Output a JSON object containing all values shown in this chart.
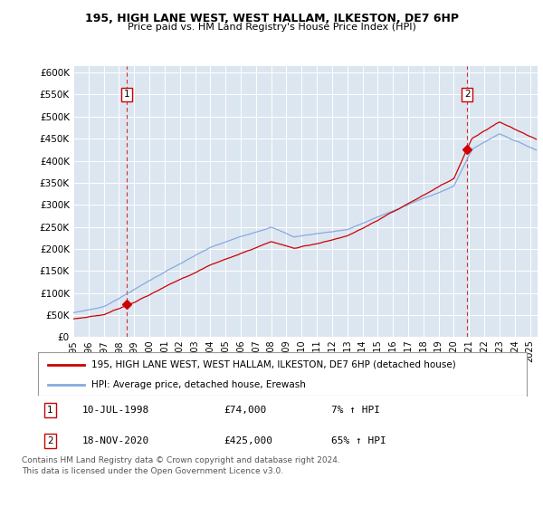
{
  "title1": "195, HIGH LANE WEST, WEST HALLAM, ILKESTON, DE7 6HP",
  "title2": "Price paid vs. HM Land Registry's House Price Index (HPI)",
  "ylabel_ticks": [
    "£0",
    "£50K",
    "£100K",
    "£150K",
    "£200K",
    "£250K",
    "£300K",
    "£350K",
    "£400K",
    "£450K",
    "£500K",
    "£550K",
    "£600K"
  ],
  "ytick_vals": [
    0,
    50000,
    100000,
    150000,
    200000,
    250000,
    300000,
    350000,
    400000,
    450000,
    500000,
    550000,
    600000
  ],
  "ylim": [
    0,
    615000
  ],
  "xlim_start": 1995.0,
  "xlim_end": 2025.5,
  "background_color": "#dce6f1",
  "grid_color": "#ffffff",
  "sale1_date": 1998.52,
  "sale1_price": 74000,
  "sale2_date": 2020.88,
  "sale2_price": 425000,
  "legend_line1": "195, HIGH LANE WEST, WEST HALLAM, ILKESTON, DE7 6HP (detached house)",
  "legend_line2": "HPI: Average price, detached house, Erewash",
  "table_row1": [
    "1",
    "10-JUL-1998",
    "£74,000",
    "7% ↑ HPI"
  ],
  "table_row2": [
    "2",
    "18-NOV-2020",
    "£425,000",
    "65% ↑ HPI"
  ],
  "footnote": "Contains HM Land Registry data © Crown copyright and database right 2024.\nThis data is licensed under the Open Government Licence v3.0.",
  "line_color_red": "#cc0000",
  "line_color_blue": "#88aadd",
  "dashed_color": "#cc0000",
  "xtick_years": [
    1995,
    1996,
    1997,
    1998,
    1999,
    2000,
    2001,
    2002,
    2003,
    2004,
    2005,
    2006,
    2007,
    2008,
    2009,
    2010,
    2011,
    2012,
    2013,
    2014,
    2015,
    2016,
    2017,
    2018,
    2019,
    2020,
    2021,
    2022,
    2023,
    2024,
    2025
  ]
}
